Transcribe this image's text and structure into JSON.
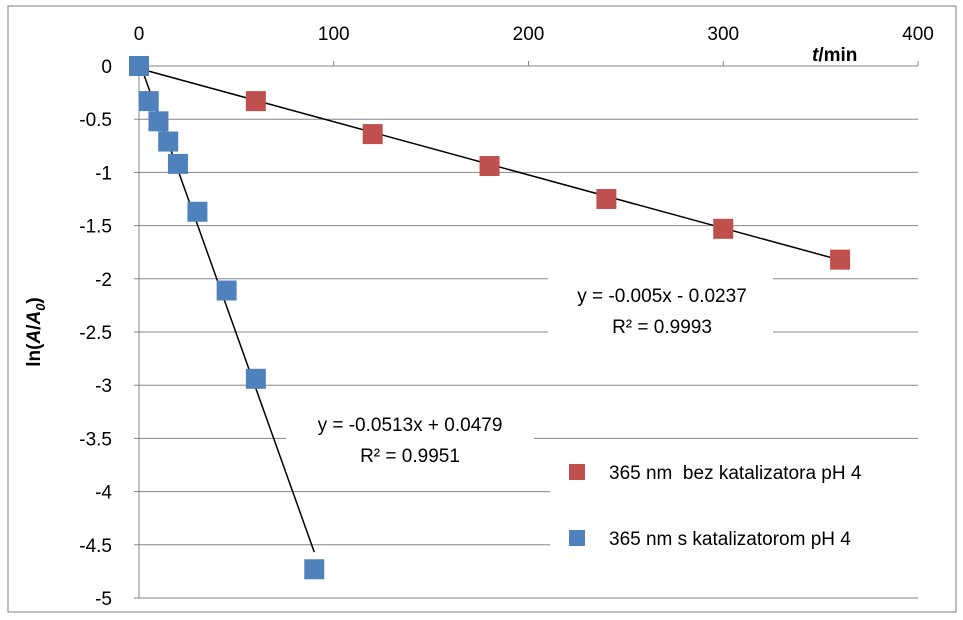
{
  "chart_data": {
    "type": "scatter",
    "xlabel_italic": "t",
    "xlabel_rest": "/min",
    "ylabel_parts": [
      "ln(",
      "A",
      "/",
      "A",
      "0",
      ")"
    ],
    "xlim": [
      0,
      400
    ],
    "ylim": [
      -5,
      0
    ],
    "xticks": [
      0,
      100,
      200,
      300,
      400
    ],
    "xtick_labels": [
      "0",
      "100",
      "200",
      "300",
      "400"
    ],
    "yticks": [
      0,
      -0.5,
      -1,
      -1.5,
      -2,
      -2.5,
      -3,
      -3.5,
      -4,
      -4.5,
      -5
    ],
    "ytick_labels": [
      "0",
      "-0.5",
      "-1",
      "-1.5",
      "-2",
      "-2.5",
      "-3",
      "-3.5",
      "-4",
      "-4.5",
      "-5"
    ],
    "grid": "horizontal",
    "legend_position": "bottom-right",
    "series": [
      {
        "name": "365 nm  bez katalizatora pH 4",
        "color": "#c0504d",
        "x": [
          0,
          60,
          120,
          180,
          240,
          300,
          360
        ],
        "y": [
          0,
          -0.33,
          -0.64,
          -0.94,
          -1.25,
          -1.53,
          -1.82
        ],
        "trendline": {
          "slope": -0.005,
          "intercept": -0.0237,
          "x_range": [
            0,
            360
          ]
        },
        "equation": "y = -0.005x - 0.0237",
        "r2": "R² = 0.9993"
      },
      {
        "name": "365 nm s katalizatorom pH 4",
        "color": "#4f81bd",
        "x": [
          0,
          5,
          10,
          15,
          20,
          30,
          45,
          60,
          90
        ],
        "y": [
          0,
          -0.33,
          -0.52,
          -0.71,
          -0.92,
          -1.37,
          -2.11,
          -2.94,
          -4.73
        ],
        "trendline": {
          "slope": -0.0513,
          "intercept": 0.0479,
          "x_range": [
            0,
            90
          ]
        },
        "equation": "y = -0.0513x + 0.0479",
        "r2": "R² = 0.9951"
      }
    ]
  }
}
